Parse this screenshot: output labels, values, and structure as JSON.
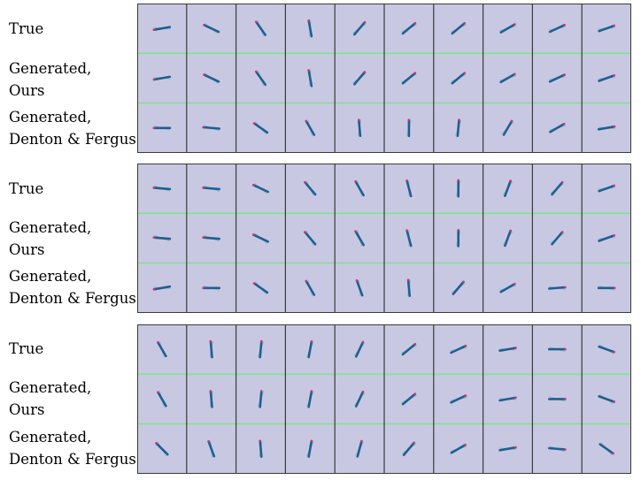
{
  "row_labels": {
    "true": "True",
    "ours_line1": "Generated,",
    "ours_line2": "Ours",
    "baseline_line1": "Generated,",
    "baseline_line2": "Denton & Fergus"
  },
  "colors": {
    "panel_background": "#c9c8e2",
    "row_separator": "#7fe38f",
    "column_separator": "#3a3a3a",
    "pendulum_rod": "#1f5f8f",
    "pendulum_ghost": "#5fb6c4",
    "pendulum_tip": "#d9306f"
  },
  "sequences": [
    {
      "frames": 10,
      "angles_deg": {
        "true": [
          -10,
          25,
          55,
          80,
          130,
          140,
          140,
          150,
          155,
          160
        ],
        "ours": [
          -10,
          25,
          55,
          80,
          130,
          140,
          140,
          150,
          155,
          160
        ],
        "baseline": [
          0,
          5,
          35,
          60,
          85,
          90,
          95,
          120,
          150,
          170
        ]
      }
    },
    {
      "frames": 10,
      "angles_deg": {
        "true": [
          5,
          5,
          25,
          50,
          60,
          75,
          90,
          110,
          130,
          160
        ],
        "ours": [
          5,
          5,
          25,
          50,
          60,
          75,
          90,
          110,
          130,
          160
        ],
        "baseline": [
          -10,
          0,
          35,
          60,
          70,
          85,
          130,
          150,
          175,
          180
        ]
      }
    },
    {
      "frames": 10,
      "angles_deg": {
        "true": [
          60,
          85,
          95,
          100,
          115,
          140,
          155,
          170,
          180,
          200
        ],
        "ours": [
          60,
          85,
          95,
          100,
          115,
          140,
          155,
          170,
          180,
          200
        ],
        "baseline": [
          45,
          70,
          85,
          100,
          105,
          130,
          150,
          170,
          185,
          215
        ]
      }
    }
  ]
}
